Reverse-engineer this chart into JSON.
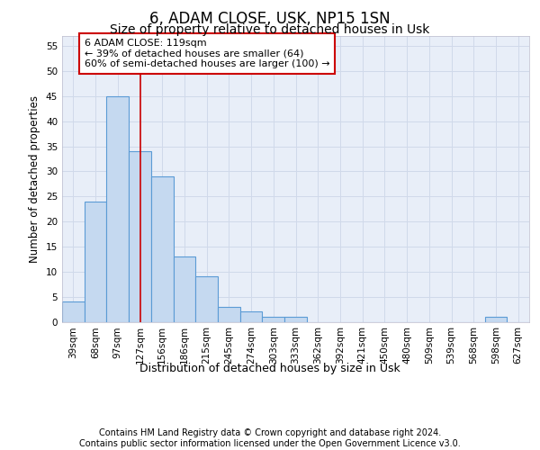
{
  "title": "6, ADAM CLOSE, USK, NP15 1SN",
  "subtitle": "Size of property relative to detached houses in Usk",
  "xlabel": "Distribution of detached houses by size in Usk",
  "ylabel": "Number of detached properties",
  "categories": [
    "39sqm",
    "68sqm",
    "97sqm",
    "127sqm",
    "156sqm",
    "186sqm",
    "215sqm",
    "245sqm",
    "274sqm",
    "303sqm",
    "333sqm",
    "362sqm",
    "392sqm",
    "421sqm",
    "450sqm",
    "480sqm",
    "509sqm",
    "539sqm",
    "568sqm",
    "598sqm",
    "627sqm"
  ],
  "values": [
    4,
    24,
    45,
    34,
    29,
    13,
    9,
    3,
    2,
    1,
    1,
    0,
    0,
    0,
    0,
    0,
    0,
    0,
    0,
    1,
    0
  ],
  "bar_color": "#c5d9f0",
  "bar_edge_color": "#5b9bd5",
  "bar_edge_width": 0.8,
  "vline_x": 3.0,
  "vline_color": "#cc0000",
  "vline_linewidth": 1.2,
  "ylim": [
    0,
    57
  ],
  "yticks": [
    0,
    5,
    10,
    15,
    20,
    25,
    30,
    35,
    40,
    45,
    50,
    55
  ],
  "grid_color": "#d0d9ea",
  "background_color": "#e8eef8",
  "annotation_text": "6 ADAM CLOSE: 119sqm\n← 39% of detached houses are smaller (64)\n60% of semi-detached houses are larger (100) →",
  "annotation_box_color": "white",
  "annotation_box_edge_color": "#cc0000",
  "footer_text": "Contains HM Land Registry data © Crown copyright and database right 2024.\nContains public sector information licensed under the Open Government Licence v3.0.",
  "title_fontsize": 12,
  "subtitle_fontsize": 10,
  "xlabel_fontsize": 9,
  "ylabel_fontsize": 8.5,
  "tick_fontsize": 7.5,
  "annotation_fontsize": 8,
  "footer_fontsize": 7
}
